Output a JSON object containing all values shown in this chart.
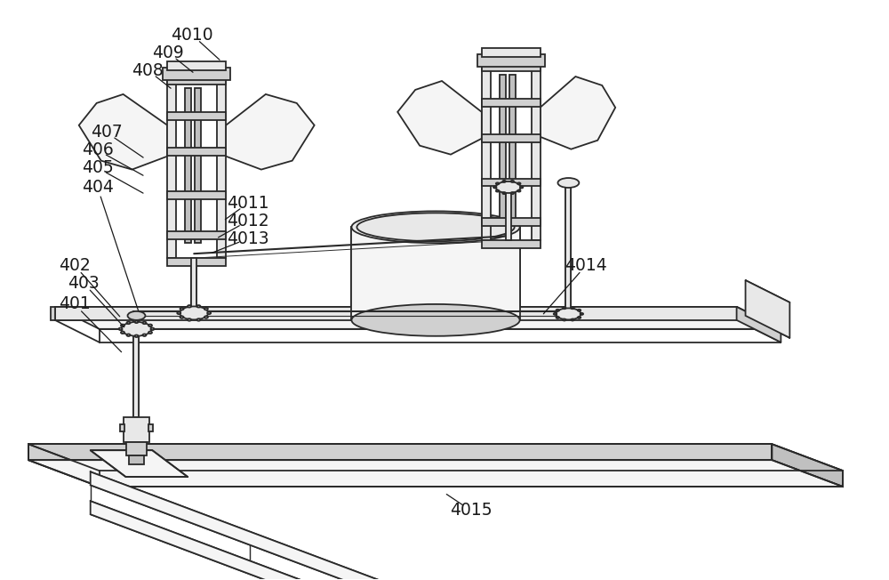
{
  "bg_color": "#ffffff",
  "lc": "#2a2a2a",
  "fill_light": "#f5f5f5",
  "fill_mid": "#e8e8e8",
  "fill_dark": "#d0d0d0",
  "fill_darker": "#c0c0c0",
  "figsize": [
    10.0,
    6.52
  ],
  "dpi": 100,
  "labels": [
    [
      "4010",
      215,
      38
    ],
    [
      "409",
      188,
      58
    ],
    [
      "408",
      165,
      78
    ],
    [
      "407",
      118,
      148
    ],
    [
      "406",
      108,
      168
    ],
    [
      "405",
      108,
      188
    ],
    [
      "404",
      108,
      210
    ],
    [
      "402",
      82,
      298
    ],
    [
      "403",
      92,
      318
    ],
    [
      "401",
      82,
      342
    ],
    [
      "4011",
      278,
      228
    ],
    [
      "4012",
      278,
      248
    ],
    [
      "4013",
      278,
      268
    ],
    [
      "4014",
      660,
      298
    ],
    [
      "4015",
      530,
      575
    ]
  ]
}
